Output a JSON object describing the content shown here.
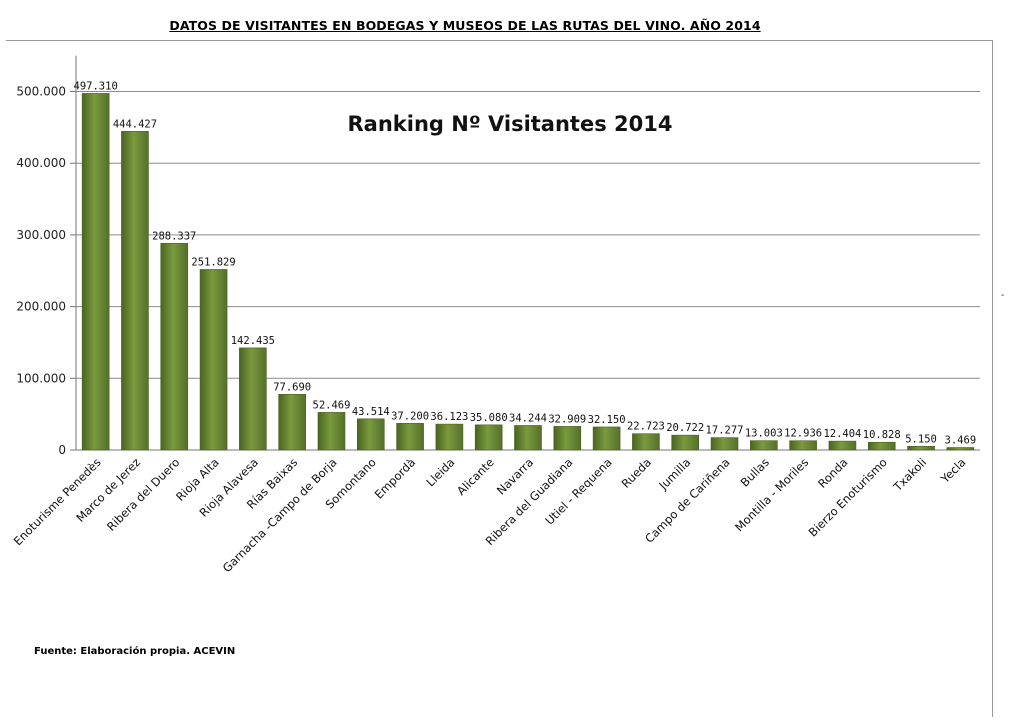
{
  "page": {
    "doc_title": "DATOS DE VISITANTES EN BODEGAS Y MUSEOS DE LAS RUTAS DEL VINO. AÑO 2014",
    "source": "Fuente: Elaboración propia. ACEVIN",
    "side_mark": "-"
  },
  "chart_data": {
    "type": "bar",
    "title": "Ranking Nº Visitantes 2014",
    "xlabel": "",
    "ylabel": "",
    "ylim": [
      0,
      550000
    ],
    "yticks": [
      0,
      100000,
      200000,
      300000,
      400000,
      500000
    ],
    "ytick_labels": [
      "0",
      "100.000",
      "200.000",
      "300.000",
      "400.000",
      "500.000"
    ],
    "grid": true,
    "legend": "none",
    "bar_color": "#6f8e35",
    "categories": [
      "Enoturisme Penedès",
      "Marco de Jerez",
      "Ribera del Duero",
      "Rioja Alta",
      "Rioja Alavesa",
      "Rías Baixas",
      "Garnacha -Campo de Borja",
      "Somontano",
      "Empordà",
      "Lleida",
      "Alicante",
      "Navarra",
      "Ribera del Guadiana",
      "Utiel - Requena",
      "Rueda",
      "Jumilla",
      "Campo de Cariñena",
      "Bullas",
      "Montilla - Moriles",
      "Ronda",
      "Bierzo Enoturismo",
      "Txakoli",
      "Yecla"
    ],
    "values": [
      497310,
      444427,
      288337,
      251829,
      142435,
      77690,
      52469,
      43514,
      37200,
      36123,
      35080,
      34244,
      32909,
      32150,
      22723,
      20722,
      17277,
      13003,
      12936,
      12404,
      10828,
      5150,
      3469
    ],
    "data_labels": [
      "497.310",
      "444.427",
      "288.337",
      "251.829",
      "142.435",
      "77.690",
      "52.469",
      "43.514",
      "37.200",
      "36.123",
      "35.080",
      "34.244",
      "32.909",
      "32.150",
      "22.723",
      "20.722",
      "17.277",
      "13.003",
      "12.936",
      "12.404",
      "10.828",
      "5.150",
      "3.469"
    ]
  }
}
